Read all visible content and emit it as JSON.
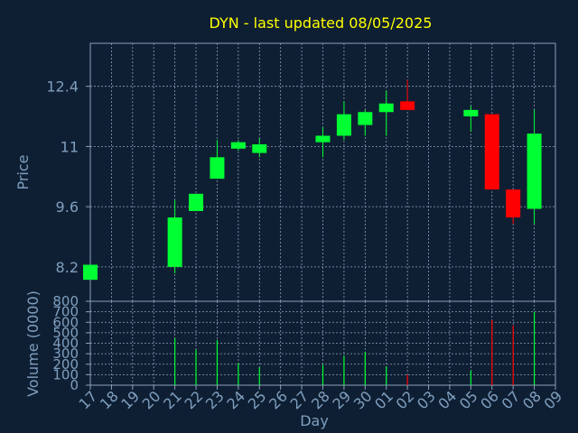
{
  "chart_data": {
    "type": "candlestick",
    "title": "DYN - last updated 08/05/2025",
    "xlabel": "Day",
    "colors": {
      "background": "#0f1f33",
      "text": "#7f9fbf",
      "title": "#ffff00",
      "grid": "#8aa0b8",
      "up": "#00ff33",
      "down": "#ff0000"
    },
    "x_ticks": [
      "17",
      "18",
      "19",
      "20",
      "21",
      "22",
      "23",
      "24",
      "25",
      "26",
      "27",
      "28",
      "29",
      "30",
      "01",
      "02",
      "03",
      "04",
      "05",
      "06",
      "07",
      "08",
      "09"
    ],
    "price_panel": {
      "ylabel": "Price",
      "ylim": [
        7.4,
        13.4
      ],
      "y_ticks": [
        "8.2",
        "9.6",
        "11",
        "12.4"
      ],
      "candles": [
        {
          "day": "17",
          "open": 7.9,
          "close": 8.25,
          "high": 8.25,
          "low": 7.9
        },
        {
          "day": "21",
          "open": 8.2,
          "close": 9.35,
          "high": 9.75,
          "low": 8.05
        },
        {
          "day": "22",
          "open": 9.5,
          "close": 9.9,
          "high": 9.9,
          "low": 9.5
        },
        {
          "day": "23",
          "open": 10.25,
          "close": 10.75,
          "high": 11.15,
          "low": 10.25
        },
        {
          "day": "24",
          "open": 10.95,
          "close": 11.1,
          "high": 11.15,
          "low": 10.9
        },
        {
          "day": "25",
          "open": 10.85,
          "close": 11.05,
          "high": 11.2,
          "low": 10.75
        },
        {
          "day": "28",
          "open": 11.1,
          "close": 11.25,
          "high": 11.45,
          "low": 10.75
        },
        {
          "day": "29",
          "open": 11.25,
          "close": 11.75,
          "high": 12.05,
          "low": 11.15
        },
        {
          "day": "30",
          "open": 11.5,
          "close": 11.8,
          "high": 11.85,
          "low": 11.25
        },
        {
          "day": "01",
          "open": 11.8,
          "close": 12.0,
          "high": 12.3,
          "low": 11.25
        },
        {
          "day": "02",
          "open": 12.05,
          "close": 11.85,
          "high": 12.55,
          "low": 11.85
        },
        {
          "day": "05",
          "open": 11.7,
          "close": 11.85,
          "high": 11.95,
          "low": 11.35
        },
        {
          "day": "06",
          "open": 11.75,
          "close": 10.0,
          "high": 11.75,
          "low": 10.0
        },
        {
          "day": "07",
          "open": 10.0,
          "close": 9.35,
          "high": 10.0,
          "low": 9.2
        },
        {
          "day": "08",
          "open": 9.55,
          "close": 11.3,
          "high": 11.85,
          "low": 9.2
        }
      ]
    },
    "volume_panel": {
      "ylabel": "Volume (0000)",
      "ylim": [
        0,
        800
      ],
      "y_ticks": [
        "0",
        "100",
        "200",
        "300",
        "400",
        "500",
        "600",
        "700",
        "800"
      ],
      "bars": [
        {
          "day": "21",
          "value": 450,
          "dir": "up"
        },
        {
          "day": "22",
          "value": 340,
          "dir": "up"
        },
        {
          "day": "23",
          "value": 430,
          "dir": "up"
        },
        {
          "day": "24",
          "value": 210,
          "dir": "up"
        },
        {
          "day": "25",
          "value": 170,
          "dir": "up"
        },
        {
          "day": "28",
          "value": 195,
          "dir": "up"
        },
        {
          "day": "29",
          "value": 280,
          "dir": "up"
        },
        {
          "day": "30",
          "value": 320,
          "dir": "up"
        },
        {
          "day": "01",
          "value": 180,
          "dir": "up"
        },
        {
          "day": "02",
          "value": 100,
          "dir": "down"
        },
        {
          "day": "05",
          "value": 140,
          "dir": "up"
        },
        {
          "day": "06",
          "value": 620,
          "dir": "down"
        },
        {
          "day": "07",
          "value": 570,
          "dir": "down"
        },
        {
          "day": "08",
          "value": 700,
          "dir": "up"
        }
      ]
    }
  }
}
